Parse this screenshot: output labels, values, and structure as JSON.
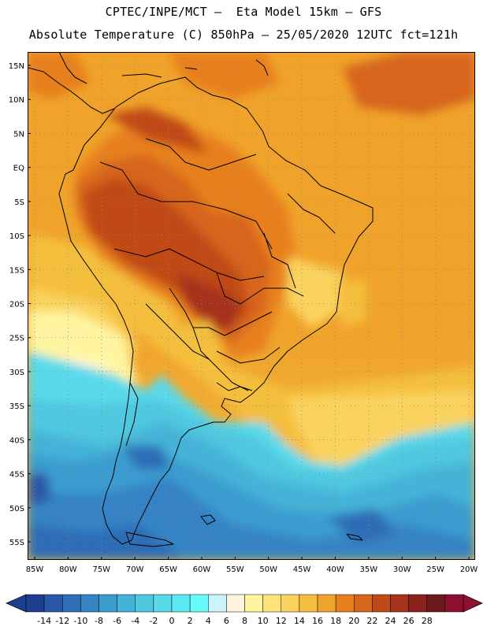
{
  "header": {
    "line1": "CPTEC/INPE/MCT –  Eta Model 15km – GFS",
    "line2": "Absolute Temperature (C) 850hPa – 25/05/2020 12UTC fct=121h"
  },
  "map": {
    "lat_labels": [
      "15N",
      "10N",
      "5N",
      "EQ",
      "5S",
      "10S",
      "15S",
      "20S",
      "25S",
      "30S",
      "35S",
      "40S",
      "45S",
      "50S",
      "55S"
    ],
    "lon_labels": [
      "85W",
      "80W",
      "75W",
      "70W",
      "65W",
      "60W",
      "55W",
      "50W",
      "45W",
      "40W",
      "35W",
      "30W",
      "25W",
      "20W"
    ]
  },
  "colorbar": {
    "labels": [
      "-14",
      "-12",
      "-10",
      "-8",
      "-6",
      "-4",
      "-2",
      "0",
      "2",
      "4",
      "6",
      "8",
      "10",
      "12",
      "14",
      "16",
      "18",
      "20",
      "22",
      "24",
      "26",
      "28"
    ],
    "colors": [
      "#1d3f8f",
      "#2a58a8",
      "#2f6db6",
      "#3683c4",
      "#3b9ccf",
      "#44b3d8",
      "#4fc8e0",
      "#5ad9ea",
      "#5ce9f3",
      "#66fafa",
      "#c9f4fb",
      "#fff5dd",
      "#fff5a0",
      "#fde27a",
      "#fad35f",
      "#f4bf3e",
      "#f0a32a",
      "#e7801c",
      "#d7651a",
      "#c04a15",
      "#a6321a",
      "#8a2219",
      "#6b1a1b",
      "#8e1030"
    ],
    "under_color": "#1d3f8f",
    "over_color": "#8e1030"
  }
}
